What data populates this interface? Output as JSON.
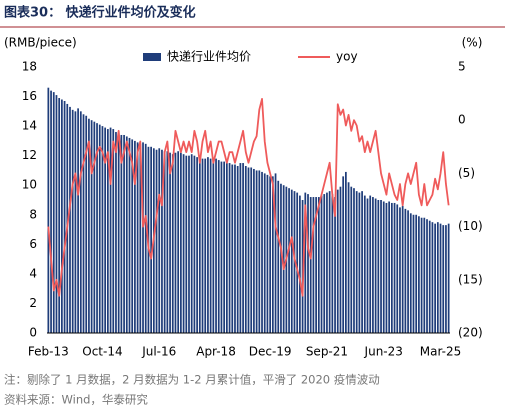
{
  "chart_data": {
    "type": "bar_line",
    "title": "图表30：  快递行业件均价及变化",
    "y_label": "(RMB/piece)",
    "y2_label": "(%)",
    "note": "注：剔除了 1 月数据，2 月数据为 1-2 月累计值，平滑了 2020 疫情波动",
    "source": "资料来源：Wind，华泰研究",
    "categories": [
      "Feb-13",
      null,
      null,
      null,
      null,
      null,
      null,
      null,
      null,
      null,
      null,
      null,
      null,
      null,
      null,
      null,
      null,
      null,
      null,
      null,
      "Oct-14",
      null,
      null,
      null,
      null,
      null,
      null,
      null,
      null,
      null,
      null,
      null,
      null,
      null,
      null,
      null,
      null,
      null,
      null,
      null,
      null,
      "Jul-16",
      null,
      null,
      null,
      null,
      null,
      null,
      null,
      null,
      null,
      null,
      null,
      null,
      null,
      null,
      null,
      null,
      null,
      null,
      null,
      null,
      "Apr-18",
      null,
      null,
      null,
      null,
      null,
      null,
      null,
      null,
      null,
      null,
      null,
      null,
      null,
      null,
      null,
      null,
      null,
      null,
      null,
      "Dec-19",
      null,
      null,
      null,
      null,
      null,
      null,
      null,
      null,
      null,
      null,
      null,
      null,
      null,
      null,
      null,
      null,
      null,
      null,
      null,
      null,
      "Sep-21",
      null,
      null,
      null,
      null,
      null,
      null,
      null,
      null,
      null,
      null,
      null,
      null,
      null,
      null,
      null,
      null,
      null,
      null,
      null,
      null,
      "Jun-23",
      null,
      null,
      null,
      null,
      null,
      null,
      null,
      null,
      null,
      null,
      null,
      null,
      null,
      null,
      null,
      null,
      null,
      null,
      null,
      null,
      "Mar-25",
      null,
      null,
      null
    ],
    "series": [
      {
        "name": "快递行业件均价",
        "type": "bar",
        "color": "#1f3d7a",
        "values": [
          16.6,
          16.4,
          16.3,
          16.1,
          15.9,
          15.8,
          15.7,
          15.5,
          15.3,
          15.1,
          15.0,
          15.2,
          15.0,
          14.8,
          14.7,
          14.5,
          14.4,
          14.3,
          14.2,
          14.1,
          14.0,
          13.9,
          13.8,
          13.9,
          13.8,
          13.6,
          13.5,
          13.4,
          13.4,
          13.3,
          13.2,
          13.1,
          13.0,
          12.9,
          12.8,
          12.9,
          12.8,
          12.6,
          12.6,
          12.5,
          12.4,
          12.5,
          12.4,
          12.3,
          12.3,
          12.2,
          12.1,
          12.2,
          12.3,
          12.2,
          12.1,
          12.0,
          12.0,
          12.1,
          12.0,
          11.9,
          11.9,
          11.8,
          11.8,
          11.9,
          11.8,
          11.7,
          11.8,
          11.7,
          11.6,
          11.6,
          11.5,
          11.5,
          11.4,
          11.4,
          11.3,
          11.5,
          11.5,
          11.3,
          11.2,
          11.2,
          11.1,
          11.0,
          11.0,
          10.9,
          10.8,
          10.7,
          10.6,
          10.6,
          10.8,
          10.3,
          10.1,
          10.0,
          9.9,
          9.8,
          9.7,
          9.6,
          9.5,
          9.3,
          9.0,
          9.5,
          9.4,
          9.2,
          9.2,
          9.2,
          9.2,
          9.3,
          9.4,
          9.5,
          9.6,
          9.4,
          9.2,
          9.7,
          9.9,
          10.6,
          10.9,
          10.2,
          9.9,
          9.8,
          9.6,
          9.5,
          9.6,
          9.3,
          9.1,
          9.3,
          9.2,
          9.1,
          9.0,
          9.0,
          8.9,
          8.8,
          8.9,
          8.8,
          8.8,
          8.7,
          8.5,
          8.6,
          8.4,
          8.3,
          8.1,
          8.0,
          8.0,
          7.9,
          7.8,
          7.8,
          7.7,
          7.6,
          7.5,
          7.4,
          7.5,
          7.4,
          7.3,
          7.3,
          7.4
        ]
      },
      {
        "name": "yoy",
        "type": "line",
        "axis": "y2",
        "color": "#ef5b5b",
        "values": [
          -10,
          -13,
          -16,
          -15,
          -16.5,
          -14,
          -12,
          -10,
          -8,
          -6,
          -5,
          -7,
          -5,
          -4,
          -3,
          -2,
          -5,
          -4,
          -3,
          -2.5,
          -3,
          -4,
          -3,
          -6,
          -2,
          -3,
          -1,
          -4,
          -3,
          -2,
          -3,
          -4,
          -6,
          -3,
          -2,
          -10,
          -9,
          -12,
          -13,
          -11,
          -9,
          -7,
          -8,
          -3,
          -2,
          -5,
          -4,
          -1,
          -2,
          -3,
          -2,
          -3,
          -2,
          -3,
          -1,
          -2,
          -4,
          -2,
          -1,
          -3,
          -2,
          -4,
          -3,
          -2,
          -2,
          -3,
          -4,
          -3,
          -3,
          -4,
          -3,
          -2,
          -1,
          -3,
          -4,
          -3,
          -2,
          -1.5,
          1,
          2,
          -2,
          -4,
          -5,
          -6,
          -10,
          -11,
          -12,
          -14,
          -13,
          -12,
          -11,
          -13,
          -14,
          -15,
          -16.5,
          -8,
          -12,
          -13,
          -10,
          -9,
          -8,
          -7,
          -6,
          -5,
          -4,
          -7,
          -9,
          1.5,
          0.5,
          1,
          -0.5,
          0.5,
          -1,
          0,
          -0.5,
          -2,
          -1.5,
          -3,
          -2,
          -3,
          -2,
          -1,
          -3,
          -5,
          -6,
          -7,
          -5,
          -6,
          -7,
          -7.5,
          -6,
          -8,
          -6,
          -5,
          -6,
          -5,
          -4,
          -7,
          -8,
          -6,
          -8,
          -7.5,
          -7,
          -5.5,
          -6.5,
          -5,
          -3,
          -6,
          -8
        ]
      }
    ],
    "ylim": [
      0,
      18
    ],
    "yticks": [
      0,
      2,
      4,
      6,
      8,
      10,
      12,
      14,
      16,
      18
    ],
    "y2lim": [
      -20,
      5
    ],
    "y2ticks": [
      5,
      0,
      {
        "value": -5,
        "label": "(5)"
      },
      {
        "value": -10,
        "label": "(10)"
      },
      {
        "value": -15,
        "label": "(15)"
      },
      {
        "value": -20,
        "label": "(20)"
      }
    ]
  }
}
